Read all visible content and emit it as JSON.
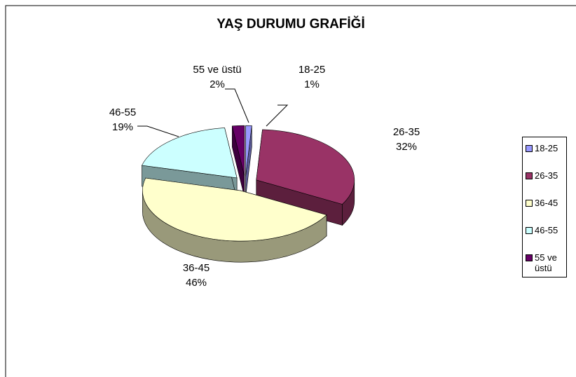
{
  "chart_data": {
    "type": "pie",
    "title": "YAŞ DURUMU GRAFİĞİ",
    "categories": [
      "18-25",
      "26-35",
      "36-45",
      "46-55",
      "55 ve üstü"
    ],
    "values": [
      1,
      32,
      46,
      19,
      2
    ],
    "value_labels": [
      "1%",
      "32%",
      "46%",
      "19%",
      "2%"
    ],
    "colors": [
      "#9999ff",
      "#993366",
      "#ffffcc",
      "#ccffff",
      "#660066"
    ],
    "legend": "right"
  }
}
